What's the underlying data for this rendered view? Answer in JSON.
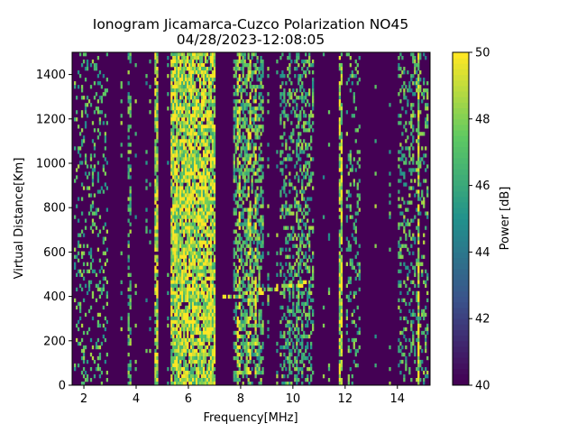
{
  "chart_data": {
    "type": "heatmap",
    "title": "Ionogram Jicamarca-Cuzco Polarization NO45",
    "subtitle": "04/28/2023-12:08:05",
    "xlabel": "Frequency[MHz]",
    "ylabel": "Virtual Distance[Km]",
    "xlim": [
      1.55,
      15.25
    ],
    "ylim": [
      0,
      1500
    ],
    "x_ticks": [
      2,
      4,
      6,
      8,
      10,
      12,
      14
    ],
    "y_ticks": [
      0,
      200,
      400,
      600,
      800,
      1000,
      1200,
      1400
    ],
    "colorbar": {
      "label": "Power [dB]",
      "range": [
        40,
        50
      ],
      "ticks": [
        40,
        42,
        44,
        46,
        48,
        50
      ],
      "colormap": "viridis"
    },
    "features": [
      {
        "kind": "band",
        "x_range": [
          5.3,
          7.0
        ],
        "level": 0.85
      },
      {
        "kind": "band",
        "x_range": [
          7.7,
          8.9
        ],
        "level": 0.55
      },
      {
        "kind": "band",
        "x_range": [
          9.5,
          10.8
        ],
        "level": 0.35
      },
      {
        "kind": "band",
        "x_range": [
          1.6,
          2.9
        ],
        "level": 0.18
      },
      {
        "kind": "band",
        "x_range": [
          12.0,
          12.6
        ],
        "level": 0.2
      },
      {
        "kind": "band",
        "x_range": [
          14.0,
          15.2
        ],
        "level": 0.25
      },
      {
        "kind": "line",
        "x": 4.75,
        "level": 0.9
      },
      {
        "kind": "line",
        "x": 11.85,
        "level": 0.8
      },
      {
        "kind": "line",
        "x": 14.8,
        "level": 0.95
      },
      {
        "kind": "line",
        "x": 3.75,
        "level": 0.5
      },
      {
        "kind": "trace",
        "x_range": [
          7.2,
          10.6
        ],
        "y_range": [
          395,
          460
        ],
        "level": 0.7
      }
    ],
    "grid": false
  }
}
